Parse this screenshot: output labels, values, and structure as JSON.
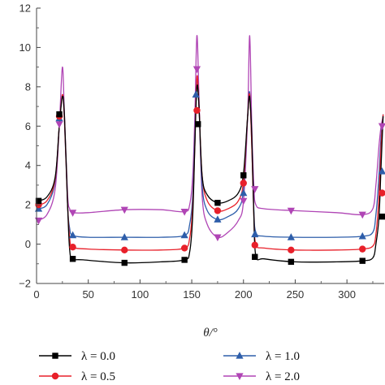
{
  "chart_data": {
    "type": "line",
    "xlabel": "θ/°",
    "ylabel": "",
    "xlim": [
      0,
      336
    ],
    "ylim": [
      -2,
      12
    ],
    "x_ticks": [
      0,
      50,
      100,
      150,
      200,
      250,
      300
    ],
    "y_ticks": [
      -2,
      0,
      2,
      4,
      6,
      8,
      10,
      12
    ],
    "grid": false,
    "legend_position": "bottom",
    "series": [
      {
        "name": "λ = 0.0",
        "color": "#000000",
        "marker": "square",
        "curve": [
          [
            0,
            2.2
          ],
          [
            10,
            2.4
          ],
          [
            18,
            3.4
          ],
          [
            22,
            6.0
          ],
          [
            25,
            7.5
          ],
          [
            27,
            6.5
          ],
          [
            30,
            2.0
          ],
          [
            32,
            -0.3
          ],
          [
            35,
            -0.75
          ],
          [
            45,
            -0.8
          ],
          [
            85,
            -0.95
          ],
          [
            120,
            -0.9
          ],
          [
            143,
            -0.8
          ],
          [
            148,
            -0.4
          ],
          [
            151,
            1.5
          ],
          [
            153,
            5.0
          ],
          [
            155,
            8.0
          ],
          [
            157,
            7.0
          ],
          [
            160,
            3.5
          ],
          [
            165,
            2.5
          ],
          [
            175,
            2.1
          ],
          [
            185,
            2.2
          ],
          [
            195,
            2.6
          ],
          [
            200,
            3.6
          ],
          [
            204,
            6.5
          ],
          [
            206,
            7.5
          ],
          [
            208,
            5.5
          ],
          [
            210,
            1.5
          ],
          [
            212,
            -0.6
          ],
          [
            220,
            -0.75
          ],
          [
            250,
            -0.9
          ],
          [
            290,
            -0.9
          ],
          [
            315,
            -0.85
          ],
          [
            325,
            -0.7
          ],
          [
            328,
            0.0
          ],
          [
            331,
            1.4
          ],
          [
            333,
            4.0
          ],
          [
            335,
            6.5
          ]
        ],
        "markers": [
          [
            2,
            2.2
          ],
          [
            22,
            6.6
          ],
          [
            35,
            -0.75
          ],
          [
            85,
            -0.95
          ],
          [
            143,
            -0.8
          ],
          [
            156,
            6.1
          ],
          [
            175,
            2.1
          ],
          [
            200,
            3.5
          ],
          [
            211,
            -0.65
          ],
          [
            246,
            -0.9
          ],
          [
            315,
            -0.85
          ],
          [
            334,
            1.4
          ]
        ]
      },
      {
        "name": "λ = 0.5",
        "color": "#e8202a",
        "marker": "circle",
        "curve": [
          [
            0,
            2.0
          ],
          [
            10,
            2.2
          ],
          [
            18,
            3.3
          ],
          [
            22,
            6.0
          ],
          [
            25,
            7.6
          ],
          [
            27,
            6.3
          ],
          [
            30,
            2.0
          ],
          [
            32,
            0.3
          ],
          [
            35,
            -0.15
          ],
          [
            50,
            -0.25
          ],
          [
            85,
            -0.3
          ],
          [
            120,
            -0.3
          ],
          [
            143,
            -0.2
          ],
          [
            148,
            0.3
          ],
          [
            151,
            2.0
          ],
          [
            153,
            5.0
          ],
          [
            155,
            8.5
          ],
          [
            157,
            7.0
          ],
          [
            160,
            3.5
          ],
          [
            165,
            2.2
          ],
          [
            175,
            1.7
          ],
          [
            185,
            1.8
          ],
          [
            195,
            2.2
          ],
          [
            200,
            3.2
          ],
          [
            204,
            6.5
          ],
          [
            206,
            7.6
          ],
          [
            208,
            5.0
          ],
          [
            210,
            1.5
          ],
          [
            212,
            0.0
          ],
          [
            220,
            -0.2
          ],
          [
            250,
            -0.3
          ],
          [
            290,
            -0.3
          ],
          [
            315,
            -0.25
          ],
          [
            325,
            -0.1
          ],
          [
            328,
            0.5
          ],
          [
            331,
            2.5
          ],
          [
            333,
            5.0
          ],
          [
            335,
            6.6
          ]
        ],
        "markers": [
          [
            2,
            2.0
          ],
          [
            22,
            6.5
          ],
          [
            35,
            -0.15
          ],
          [
            85,
            -0.3
          ],
          [
            143,
            -0.2
          ],
          [
            155,
            6.8
          ],
          [
            175,
            1.7
          ],
          [
            200,
            3.1
          ],
          [
            211,
            -0.05
          ],
          [
            246,
            -0.3
          ],
          [
            315,
            -0.25
          ],
          [
            334,
            2.6
          ]
        ]
      },
      {
        "name": "λ = 1.0",
        "color": "#2e5eaa",
        "marker": "triangle-up",
        "curve": [
          [
            0,
            1.8
          ],
          [
            10,
            2.0
          ],
          [
            18,
            3.2
          ],
          [
            22,
            6.0
          ],
          [
            25,
            7.6
          ],
          [
            27,
            6.2
          ],
          [
            30,
            2.0
          ],
          [
            32,
            0.8
          ],
          [
            35,
            0.45
          ],
          [
            50,
            0.35
          ],
          [
            85,
            0.35
          ],
          [
            120,
            0.35
          ],
          [
            143,
            0.45
          ],
          [
            148,
            1.0
          ],
          [
            151,
            2.5
          ],
          [
            153,
            5.5
          ],
          [
            155,
            8.2
          ],
          [
            157,
            7.0
          ],
          [
            160,
            3.0
          ],
          [
            165,
            1.7
          ],
          [
            175,
            1.25
          ],
          [
            185,
            1.4
          ],
          [
            195,
            1.8
          ],
          [
            200,
            2.8
          ],
          [
            204,
            6.5
          ],
          [
            206,
            7.7
          ],
          [
            208,
            5.0
          ],
          [
            210,
            1.8
          ],
          [
            212,
            0.6
          ],
          [
            220,
            0.4
          ],
          [
            250,
            0.35
          ],
          [
            290,
            0.35
          ],
          [
            315,
            0.4
          ],
          [
            325,
            0.6
          ],
          [
            328,
            1.5
          ],
          [
            331,
            3.5
          ],
          [
            333,
            5.5
          ],
          [
            335,
            6.6
          ]
        ],
        "markers": [
          [
            2,
            1.8
          ],
          [
            22,
            6.4
          ],
          [
            35,
            0.45
          ],
          [
            85,
            0.35
          ],
          [
            143,
            0.45
          ],
          [
            154,
            7.6
          ],
          [
            175,
            1.25
          ],
          [
            200,
            2.6
          ],
          [
            211,
            0.5
          ],
          [
            246,
            0.35
          ],
          [
            315,
            0.4
          ],
          [
            334,
            3.7
          ]
        ]
      },
      {
        "name": "λ = 2.0",
        "color": "#b045b5",
        "marker": "triangle-down",
        "curve": [
          [
            0,
            1.2
          ],
          [
            10,
            1.5
          ],
          [
            18,
            2.8
          ],
          [
            22,
            6.0
          ],
          [
            25,
            9.0
          ],
          [
            27,
            6.5
          ],
          [
            30,
            2.5
          ],
          [
            32,
            1.8
          ],
          [
            35,
            1.6
          ],
          [
            50,
            1.6
          ],
          [
            85,
            1.75
          ],
          [
            120,
            1.75
          ],
          [
            143,
            1.65
          ],
          [
            148,
            2.0
          ],
          [
            151,
            3.5
          ],
          [
            153,
            6.5
          ],
          [
            155,
            10.6
          ],
          [
            157,
            7.5
          ],
          [
            160,
            2.5
          ],
          [
            165,
            1.0
          ],
          [
            175,
            0.35
          ],
          [
            185,
            0.6
          ],
          [
            195,
            1.2
          ],
          [
            200,
            2.2
          ],
          [
            204,
            6.5
          ],
          [
            206,
            10.6
          ],
          [
            208,
            6.0
          ],
          [
            210,
            3.0
          ],
          [
            212,
            2.0
          ],
          [
            220,
            1.8
          ],
          [
            250,
            1.7
          ],
          [
            290,
            1.6
          ],
          [
            315,
            1.5
          ],
          [
            325,
            1.8
          ],
          [
            328,
            3.0
          ],
          [
            331,
            5.0
          ],
          [
            333,
            6.0
          ],
          [
            335,
            6.5
          ]
        ],
        "markers": [
          [
            2,
            1.2
          ],
          [
            22,
            6.1
          ],
          [
            35,
            1.6
          ],
          [
            85,
            1.75
          ],
          [
            143,
            1.65
          ],
          [
            155,
            8.9
          ],
          [
            175,
            0.35
          ],
          [
            200,
            2.2
          ],
          [
            211,
            2.8
          ],
          [
            246,
            1.7
          ],
          [
            315,
            1.5
          ],
          [
            334,
            6.0
          ]
        ]
      }
    ]
  }
}
